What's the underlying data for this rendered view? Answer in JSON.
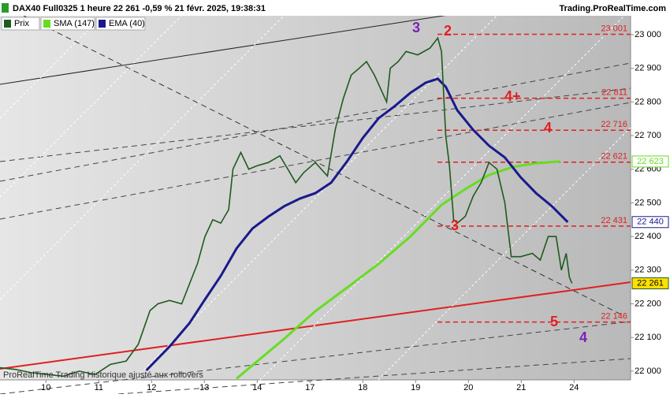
{
  "header": {
    "title": "DAX40 Full0325 1 heure 22 261 -0,59 % 21 févr. 2025, 19:38:31",
    "source": "Trading.ProRealTime.com"
  },
  "watermark": "ProRealTime Trading Historique ajusté aux rollovers",
  "chart_data": {
    "type": "line",
    "xlim": [
      -0.87,
      11.07
    ],
    "ylim": [
      21974,
      23103
    ],
    "xticks": [
      {
        "value": 0,
        "label": "10"
      },
      {
        "value": 1,
        "label": "11"
      },
      {
        "value": 2,
        "label": "12"
      },
      {
        "value": 3,
        "label": "13"
      },
      {
        "value": 4,
        "label": "14"
      },
      {
        "value": 5,
        "label": "17"
      },
      {
        "value": 6,
        "label": "18"
      },
      {
        "value": 7,
        "label": "19"
      },
      {
        "value": 8,
        "label": "20"
      },
      {
        "value": 9,
        "label": "21"
      },
      {
        "value": 10,
        "label": "24"
      }
    ],
    "yticks": [
      {
        "value": 22000,
        "label": "22 000"
      },
      {
        "value": 22100,
        "label": "22 100"
      },
      {
        "value": 22200,
        "label": "22 200"
      },
      {
        "value": 22300,
        "label": "22 300"
      },
      {
        "value": 22400,
        "label": "22 400"
      },
      {
        "value": 22500,
        "label": "22 500"
      },
      {
        "value": 22600,
        "label": "22 600"
      },
      {
        "value": 22700,
        "label": "22 700"
      },
      {
        "value": 22800,
        "label": "22 800"
      },
      {
        "value": 22900,
        "label": "22 900"
      },
      {
        "value": 23000,
        "label": "23 000"
      }
    ],
    "series": [
      {
        "name": "Prix",
        "color": "#1f5a1f",
        "last_value_label": "22 261",
        "x": [
          -0.87,
          -0.57,
          -0.27,
          0.03,
          0.33,
          0.63,
          0.93,
          1.22,
          1.52,
          1.75,
          1.97,
          2.12,
          2.34,
          2.57,
          2.72,
          2.87,
          3.01,
          3.16,
          3.31,
          3.46,
          3.54,
          3.69,
          3.84,
          3.99,
          4.21,
          4.43,
          4.58,
          4.73,
          4.88,
          5.1,
          5.33,
          5.48,
          5.63,
          5.78,
          5.93,
          6.07,
          6.22,
          6.45,
          6.52,
          6.67,
          6.82,
          7.04,
          7.27,
          7.42,
          7.49,
          7.57,
          7.64,
          7.72,
          7.79,
          7.94,
          8.09,
          8.24,
          8.39,
          8.54,
          8.69,
          8.81,
          8.99,
          9.21,
          9.36,
          9.51,
          9.66,
          9.76,
          9.85,
          9.91,
          9.96
        ],
        "values": [
          22010,
          22005,
          21995,
          21990,
          21985,
          22000,
          21990,
          22020,
          22030,
          22080,
          22180,
          22200,
          22210,
          22200,
          22260,
          22320,
          22400,
          22450,
          22440,
          22480,
          22600,
          22650,
          22600,
          22610,
          22620,
          22640,
          22600,
          22560,
          22590,
          22620,
          22580,
          22720,
          22810,
          22880,
          22900,
          22920,
          22880,
          22800,
          22900,
          22920,
          22950,
          22940,
          22960,
          22990,
          22950,
          22700,
          22610,
          22450,
          22440,
          22460,
          22520,
          22560,
          22620,
          22600,
          22500,
          22340,
          22340,
          22350,
          22330,
          22400,
          22400,
          22300,
          22350,
          22280,
          22261
        ]
      },
      {
        "name": "SMA (147)",
        "color": "#66dd22",
        "last_value_label": "22 623",
        "x": [
          3.61,
          4.06,
          4.51,
          5.1,
          5.7,
          6.3,
          6.9,
          7.49,
          7.94,
          8.39,
          8.84,
          9.28,
          9.73
        ],
        "values": [
          21978,
          22037,
          22096,
          22178,
          22248,
          22319,
          22400,
          22494,
          22541,
          22583,
          22607,
          22618,
          22623
        ]
      },
      {
        "name": "EMA (40)",
        "color": "#1a1a8c",
        "last_value_label": "22 440",
        "x": [
          1.9,
          2.34,
          2.72,
          3.01,
          3.31,
          3.61,
          3.91,
          4.21,
          4.51,
          4.81,
          5.1,
          5.4,
          5.7,
          6.0,
          6.3,
          6.6,
          6.9,
          7.19,
          7.42,
          7.57,
          7.79,
          8.09,
          8.39,
          8.69,
          8.99,
          9.28,
          9.58,
          9.88
        ],
        "values": [
          22002,
          22073,
          22143,
          22213,
          22283,
          22365,
          22424,
          22459,
          22490,
          22513,
          22529,
          22560,
          22623,
          22693,
          22752,
          22787,
          22827,
          22857,
          22869,
          22845,
          22775,
          22717,
          22670,
          22635,
          22576,
          22529,
          22490,
          22443
        ]
      }
    ],
    "levels": [
      {
        "value": 23001,
        "label": "23 001"
      },
      {
        "value": 22811,
        "label": "22 811"
      },
      {
        "value": 22716,
        "label": "22 716"
      },
      {
        "value": 22621,
        "label": "22 621"
      },
      {
        "value": 22431,
        "label": "22 431"
      },
      {
        "value": 22146,
        "label": "22 146"
      }
    ],
    "annotations": [
      "3",
      "2",
      "4+",
      "4",
      "3",
      "5",
      "4"
    ]
  }
}
